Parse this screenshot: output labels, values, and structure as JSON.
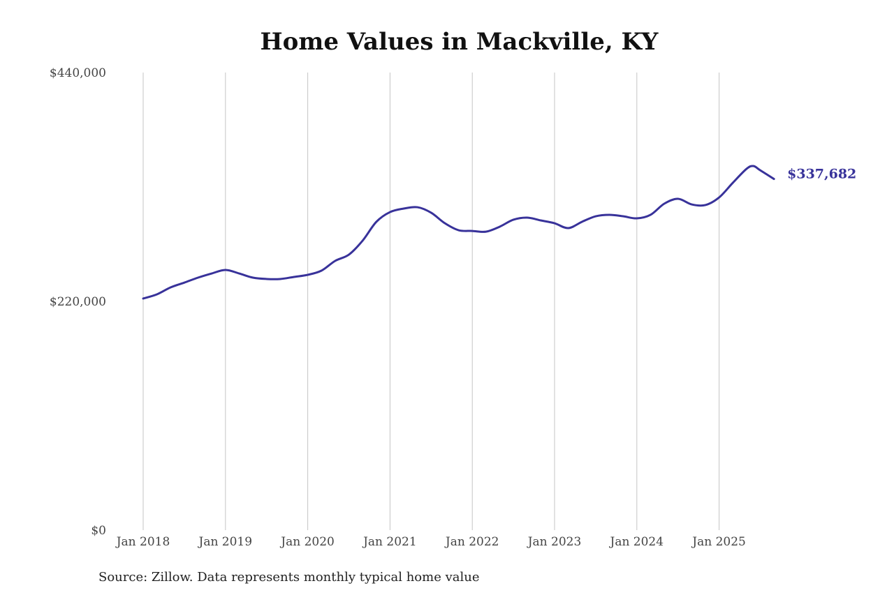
{
  "chart_data": {
    "type": "line",
    "title": "Home Values in Mackville, KY",
    "xlabel": "",
    "ylabel": "",
    "ylim": [
      0,
      440000
    ],
    "y_ticks": [
      0,
      220000,
      440000
    ],
    "y_tick_labels": [
      "$0",
      "$220,000",
      "$440,000"
    ],
    "x_ticks": [
      "2018-01",
      "2019-01",
      "2020-01",
      "2021-01",
      "2022-01",
      "2023-01",
      "2024-01",
      "2025-01"
    ],
    "x_tick_labels": [
      "Jan 2018",
      "Jan 2019",
      "Jan 2020",
      "Jan 2021",
      "Jan 2022",
      "Jan 2023",
      "Jan 2024",
      "Jan 2025"
    ],
    "grid": "vertical",
    "line_color": "#38329a",
    "end_label": "$337,682",
    "series": [
      {
        "x": [
          "2018-01",
          "2018-03",
          "2018-05",
          "2018-07",
          "2018-09",
          "2018-11",
          "2019-01",
          "2019-03",
          "2019-05",
          "2019-07",
          "2019-09",
          "2019-11",
          "2020-01",
          "2020-03",
          "2020-05",
          "2020-07",
          "2020-09",
          "2020-11",
          "2021-01",
          "2021-03",
          "2021-05",
          "2021-07",
          "2021-09",
          "2021-11",
          "2022-01",
          "2022-03",
          "2022-05",
          "2022-07",
          "2022-09",
          "2022-11",
          "2023-01",
          "2023-03",
          "2023-05",
          "2023-07",
          "2023-09",
          "2023-11",
          "2024-01",
          "2024-03",
          "2024-05",
          "2024-07",
          "2024-09",
          "2024-11",
          "2025-01",
          "2025-03",
          "2025-05",
          "2025-06",
          "2025-07",
          "2025-09"
        ],
        "values": [
          222700,
          226700,
          233400,
          238000,
          242800,
          246800,
          250200,
          246800,
          242800,
          241500,
          241500,
          243500,
          245500,
          249500,
          258900,
          264900,
          278300,
          296400,
          305800,
          309200,
          310500,
          305200,
          295100,
          288400,
          287700,
          287000,
          291800,
          298500,
          300500,
          297800,
          295100,
          290400,
          296500,
          301800,
          303200,
          301800,
          299800,
          303200,
          313900,
          318600,
          313200,
          312600,
          319900,
          334000,
          347400,
          350100,
          346000,
          337682
        ]
      }
    ]
  },
  "source": "Source: Zillow. Data represents monthly typical home value"
}
